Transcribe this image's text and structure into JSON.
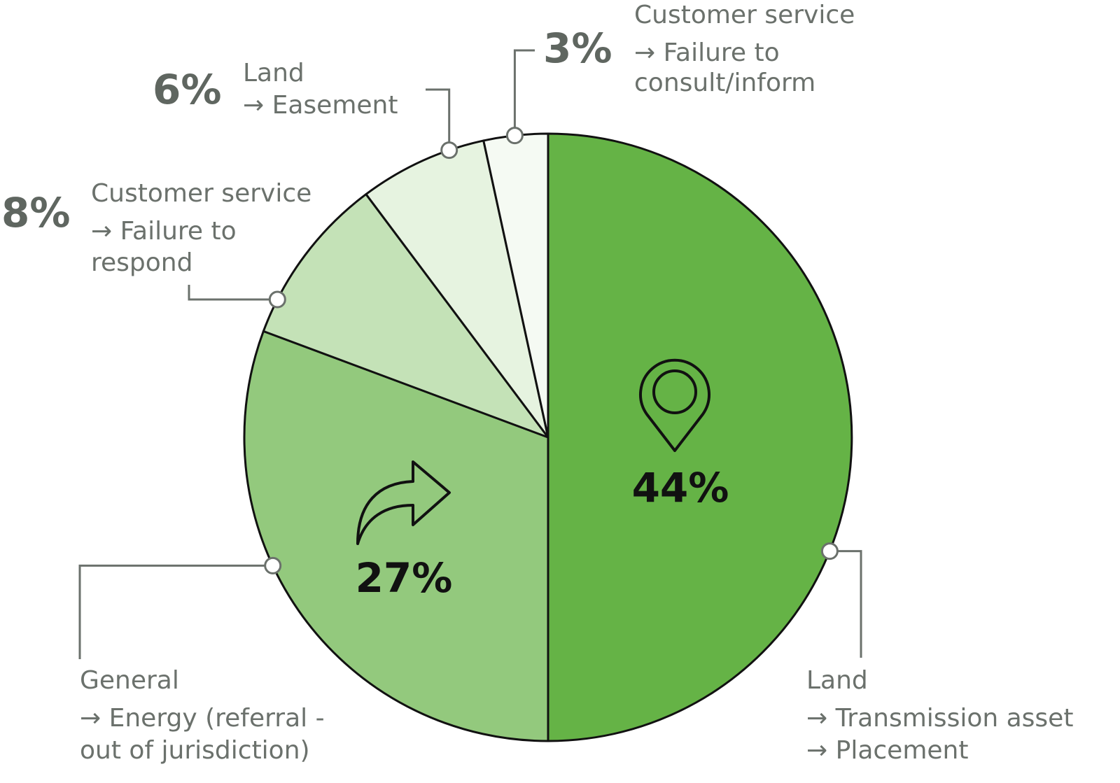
{
  "chart_data": {
    "type": "pie",
    "slices": [
      {
        "value": 44,
        "value_label": "44%",
        "label_lines": [
          "Land",
          "→ Transmission asset",
          "→ Placement"
        ],
        "color": "#65b346",
        "icon": "map-pin-icon"
      },
      {
        "value": 27,
        "value_label": "27%",
        "label_lines": [
          "General",
          "→ Energy (referral -",
          "out of jurisdiction)"
        ],
        "color": "#93c97d",
        "icon": "redirect-arrow-icon"
      },
      {
        "value": 8,
        "value_label": "8%",
        "label_lines": [
          "Customer service",
          "→ Failure to",
          "respond"
        ],
        "color": "#c4e2b7"
      },
      {
        "value": 6,
        "value_label": "6%",
        "label_lines": [
          "Land",
          "→ Easement"
        ],
        "color": "#e6f3e0"
      },
      {
        "value": 3,
        "value_label": "3%",
        "label_lines": [
          "Customer service",
          "→ Failure to",
          "consult/inform"
        ],
        "color": "#f5faf3"
      }
    ],
    "outline_color": "#111111",
    "leader_color": "#6b716c"
  }
}
